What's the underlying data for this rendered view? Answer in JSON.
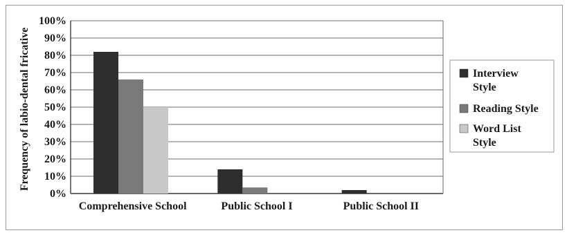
{
  "chart_data": {
    "type": "bar",
    "categories": [
      "Comprehensive School",
      "Public School I",
      "Public School II"
    ],
    "series": [
      {
        "name": "Interview Style",
        "values": [
          82,
          14,
          2
        ],
        "color": "#2e2e2e"
      },
      {
        "name": "Reading Style",
        "values": [
          66,
          3.5,
          0
        ],
        "color": "#7a7a7a"
      },
      {
        "name": "Word List Style",
        "values": [
          50,
          0,
          0
        ],
        "color": "#c8c8c8"
      }
    ],
    "ylabel": "Frequency of labio-dental fricative",
    "xlabel": "",
    "ylim": [
      0,
      100
    ],
    "yticks": [
      "0%",
      "10%",
      "20%",
      "30%",
      "40%",
      "50%",
      "60%",
      "70%",
      "80%",
      "90%",
      "100%"
    ],
    "grid": true,
    "legend_position": "right"
  }
}
